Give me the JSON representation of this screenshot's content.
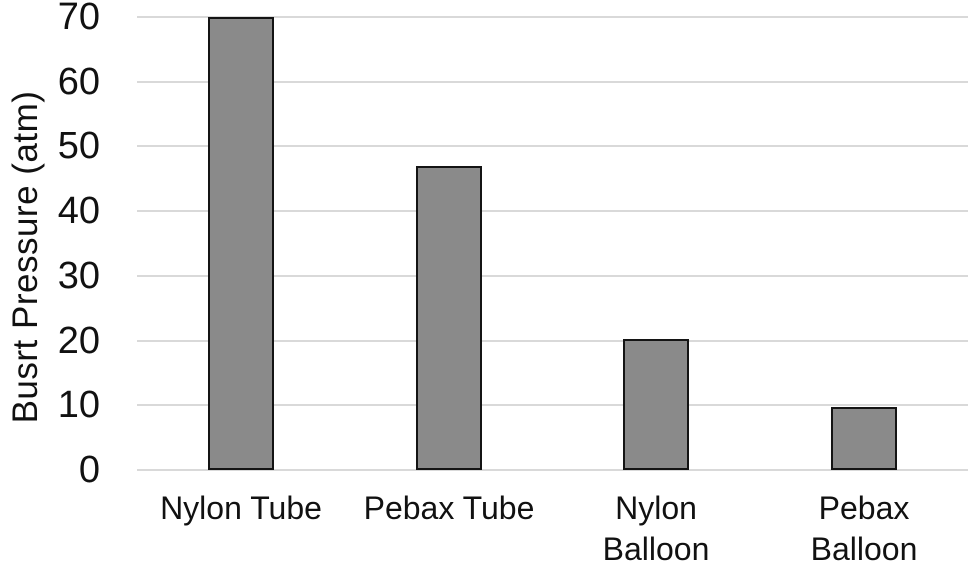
{
  "chart_data": {
    "type": "bar",
    "title": "",
    "xlabel": "",
    "ylabel": "Busrt Pressure (atm)",
    "categories": [
      "Nylon Tube",
      "Pebax Tube",
      "Nylon Balloon",
      "Pebax Balloon"
    ],
    "values": [
      70,
      47,
      20.2,
      9.8
    ],
    "x_tick_label_lines": [
      [
        "Nylon Tube"
      ],
      [
        "Pebax Tube"
      ],
      [
        "Nylon",
        "Balloon"
      ],
      [
        "Pebax",
        "Balloon"
      ]
    ],
    "yticks": [
      "0",
      "10",
      "20",
      "30",
      "40",
      "50",
      "60",
      "70"
    ],
    "ytick_values": [
      0,
      10,
      20,
      30,
      40,
      50,
      60,
      70
    ],
    "ylim": [
      0,
      70
    ],
    "grid": "horizontal",
    "legend_position": "none",
    "colors": {
      "bar_fill": "#8a8a8a",
      "bar_border": "#141414",
      "gridline": "#d9d9d9",
      "text": "#111111",
      "background": "#ffffff"
    }
  }
}
